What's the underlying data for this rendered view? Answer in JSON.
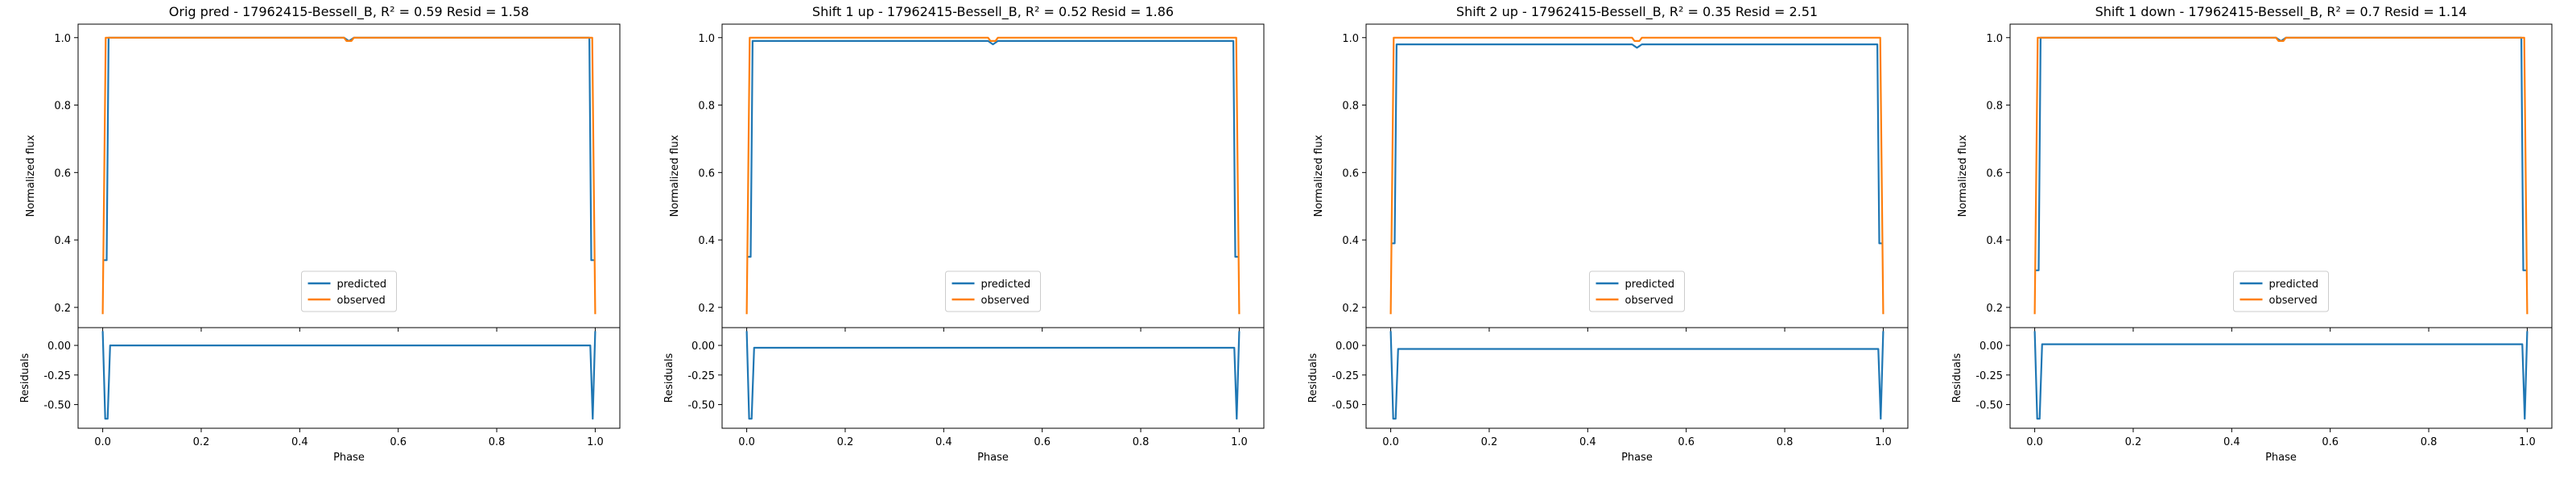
{
  "colors": {
    "predicted": "#1f77b4",
    "observed": "#ff7f0e"
  },
  "chart_data": [
    {
      "type": "line",
      "title": "Orig pred - 17962415-Bessell_B, R² = 0.59 Resid = 1.58",
      "top": {
        "ylabel": "Normalized flux",
        "ylim": [
          0.14,
          1.04
        ],
        "yticks": [
          "0.2",
          "0.4",
          "0.6",
          "0.8",
          "1.0"
        ],
        "legend": [
          "predicted",
          "observed"
        ],
        "legend_position": "lower center",
        "series": [
          {
            "name": "predicted",
            "x": [
              0.0,
              0.005,
              0.008,
              0.012,
              0.49,
              0.495,
              0.5,
              0.505,
              0.51,
              0.988,
              0.992,
              0.995,
              1.0
            ],
            "y": [
              0.34,
              0.34,
              0.34,
              1.0,
              1.0,
              0.995,
              0.99,
              0.995,
              1.0,
              1.0,
              0.34,
              0.34,
              0.34
            ]
          },
          {
            "name": "observed",
            "x": [
              0.0,
              0.006,
              0.012,
              0.49,
              0.495,
              0.5,
              0.505,
              0.51,
              0.988,
              0.994,
              1.0
            ],
            "y": [
              0.18,
              1.0,
              1.0,
              1.0,
              0.99,
              0.99,
              0.99,
              1.0,
              1.0,
              1.0,
              0.18
            ]
          }
        ]
      },
      "bottom": {
        "ylabel": "Residuals",
        "xlabel": "Phase",
        "ylim": [
          -0.7,
          0.15
        ],
        "yticks": [
          "0.00",
          "-0.25",
          "-0.50"
        ],
        "xlim": [
          -0.05,
          1.05
        ],
        "xticks": [
          "0.0",
          "0.2",
          "0.4",
          "0.6",
          "0.8",
          "1.0"
        ],
        "series": [
          {
            "name": "residual",
            "x": [
              0.0,
              0.005,
              0.01,
              0.015,
              0.99,
              0.995,
              1.0
            ],
            "y": [
              0.12,
              -0.62,
              -0.62,
              0.0,
              0.0,
              -0.62,
              0.12
            ]
          }
        ]
      }
    },
    {
      "type": "line",
      "title": "Shift 1 up - 17962415-Bessell_B, R² = 0.52 Resid = 1.86",
      "top": {
        "ylabel": "Normalized flux",
        "ylim": [
          0.14,
          1.04
        ],
        "yticks": [
          "0.2",
          "0.4",
          "0.6",
          "0.8",
          "1.0"
        ],
        "legend": [
          "predicted",
          "observed"
        ],
        "legend_position": "lower center",
        "series": [
          {
            "name": "predicted",
            "x": [
              0.0,
              0.005,
              0.008,
              0.012,
              0.49,
              0.495,
              0.5,
              0.505,
              0.51,
              0.988,
              0.992,
              0.995,
              1.0
            ],
            "y": [
              0.35,
              0.35,
              0.35,
              0.99,
              0.99,
              0.985,
              0.98,
              0.985,
              0.99,
              0.99,
              0.35,
              0.35,
              0.35
            ]
          },
          {
            "name": "observed",
            "x": [
              0.0,
              0.006,
              0.012,
              0.49,
              0.495,
              0.5,
              0.505,
              0.51,
              0.988,
              0.994,
              1.0
            ],
            "y": [
              0.18,
              1.0,
              1.0,
              1.0,
              0.99,
              0.99,
              0.99,
              1.0,
              1.0,
              1.0,
              0.18
            ]
          }
        ]
      },
      "bottom": {
        "ylabel": "Residuals",
        "xlabel": "Phase",
        "ylim": [
          -0.7,
          0.15
        ],
        "yticks": [
          "0.00",
          "-0.25",
          "-0.50"
        ],
        "xlim": [
          -0.05,
          1.05
        ],
        "xticks": [
          "0.0",
          "0.2",
          "0.4",
          "0.6",
          "0.8",
          "1.0"
        ],
        "series": [
          {
            "name": "residual",
            "x": [
              0.0,
              0.005,
              0.01,
              0.015,
              0.99,
              0.995,
              1.0
            ],
            "y": [
              0.12,
              -0.62,
              -0.62,
              -0.02,
              -0.02,
              -0.62,
              0.12
            ]
          }
        ]
      }
    },
    {
      "type": "line",
      "title": "Shift 2 up - 17962415-Bessell_B, R² = 0.35 Resid = 2.51",
      "top": {
        "ylabel": "Normalized flux",
        "ylim": [
          0.14,
          1.04
        ],
        "yticks": [
          "0.2",
          "0.4",
          "0.6",
          "0.8",
          "1.0"
        ],
        "legend": [
          "predicted",
          "observed"
        ],
        "legend_position": "lower center",
        "series": [
          {
            "name": "predicted",
            "x": [
              0.0,
              0.005,
              0.008,
              0.012,
              0.49,
              0.495,
              0.5,
              0.505,
              0.51,
              0.988,
              0.992,
              0.995,
              1.0
            ],
            "y": [
              0.39,
              0.39,
              0.39,
              0.98,
              0.98,
              0.975,
              0.97,
              0.975,
              0.98,
              0.98,
              0.39,
              0.39,
              0.39
            ]
          },
          {
            "name": "observed",
            "x": [
              0.0,
              0.006,
              0.012,
              0.49,
              0.495,
              0.5,
              0.505,
              0.51,
              0.988,
              0.994,
              1.0
            ],
            "y": [
              0.18,
              1.0,
              1.0,
              1.0,
              0.99,
              0.99,
              0.99,
              1.0,
              1.0,
              1.0,
              0.18
            ]
          }
        ]
      },
      "bottom": {
        "ylabel": "Residuals",
        "xlabel": "Phase",
        "ylim": [
          -0.7,
          0.15
        ],
        "yticks": [
          "0.00",
          "-0.25",
          "-0.50"
        ],
        "xlim": [
          -0.05,
          1.05
        ],
        "xticks": [
          "0.0",
          "0.2",
          "0.4",
          "0.6",
          "0.8",
          "1.0"
        ],
        "series": [
          {
            "name": "residual",
            "x": [
              0.0,
              0.005,
              0.01,
              0.015,
              0.99,
              0.995,
              1.0
            ],
            "y": [
              0.12,
              -0.62,
              -0.62,
              -0.03,
              -0.03,
              -0.62,
              0.12
            ]
          }
        ]
      }
    },
    {
      "type": "line",
      "title": "Shift 1 down - 17962415-Bessell_B, R² = 0.7 Resid = 1.14",
      "top": {
        "ylabel": "Normalized flux",
        "ylim": [
          0.14,
          1.04
        ],
        "yticks": [
          "0.2",
          "0.4",
          "0.6",
          "0.8",
          "1.0"
        ],
        "legend": [
          "predicted",
          "observed"
        ],
        "legend_position": "lower center",
        "series": [
          {
            "name": "predicted",
            "x": [
              0.0,
              0.005,
              0.008,
              0.012,
              0.49,
              0.495,
              0.5,
              0.505,
              0.51,
              0.988,
              0.992,
              0.995,
              1.0
            ],
            "y": [
              0.31,
              0.31,
              0.31,
              1.0,
              1.0,
              0.995,
              0.99,
              0.995,
              1.0,
              1.0,
              0.31,
              0.31,
              0.31
            ]
          },
          {
            "name": "observed",
            "x": [
              0.0,
              0.006,
              0.012,
              0.49,
              0.495,
              0.5,
              0.505,
              0.51,
              0.988,
              0.994,
              1.0
            ],
            "y": [
              0.18,
              1.0,
              1.0,
              1.0,
              0.99,
              0.99,
              0.99,
              1.0,
              1.0,
              1.0,
              0.18
            ]
          }
        ]
      },
      "bottom": {
        "ylabel": "Residuals",
        "xlabel": "Phase",
        "ylim": [
          -0.7,
          0.15
        ],
        "yticks": [
          "0.00",
          "-0.25",
          "-0.50"
        ],
        "xlim": [
          -0.05,
          1.05
        ],
        "xticks": [
          "0.0",
          "0.2",
          "0.4",
          "0.6",
          "0.8",
          "1.0"
        ],
        "series": [
          {
            "name": "residual",
            "x": [
              0.0,
              0.005,
              0.01,
              0.015,
              0.99,
              0.995,
              1.0
            ],
            "y": [
              0.12,
              -0.62,
              -0.62,
              0.01,
              0.01,
              -0.62,
              0.12
            ]
          }
        ]
      }
    }
  ]
}
